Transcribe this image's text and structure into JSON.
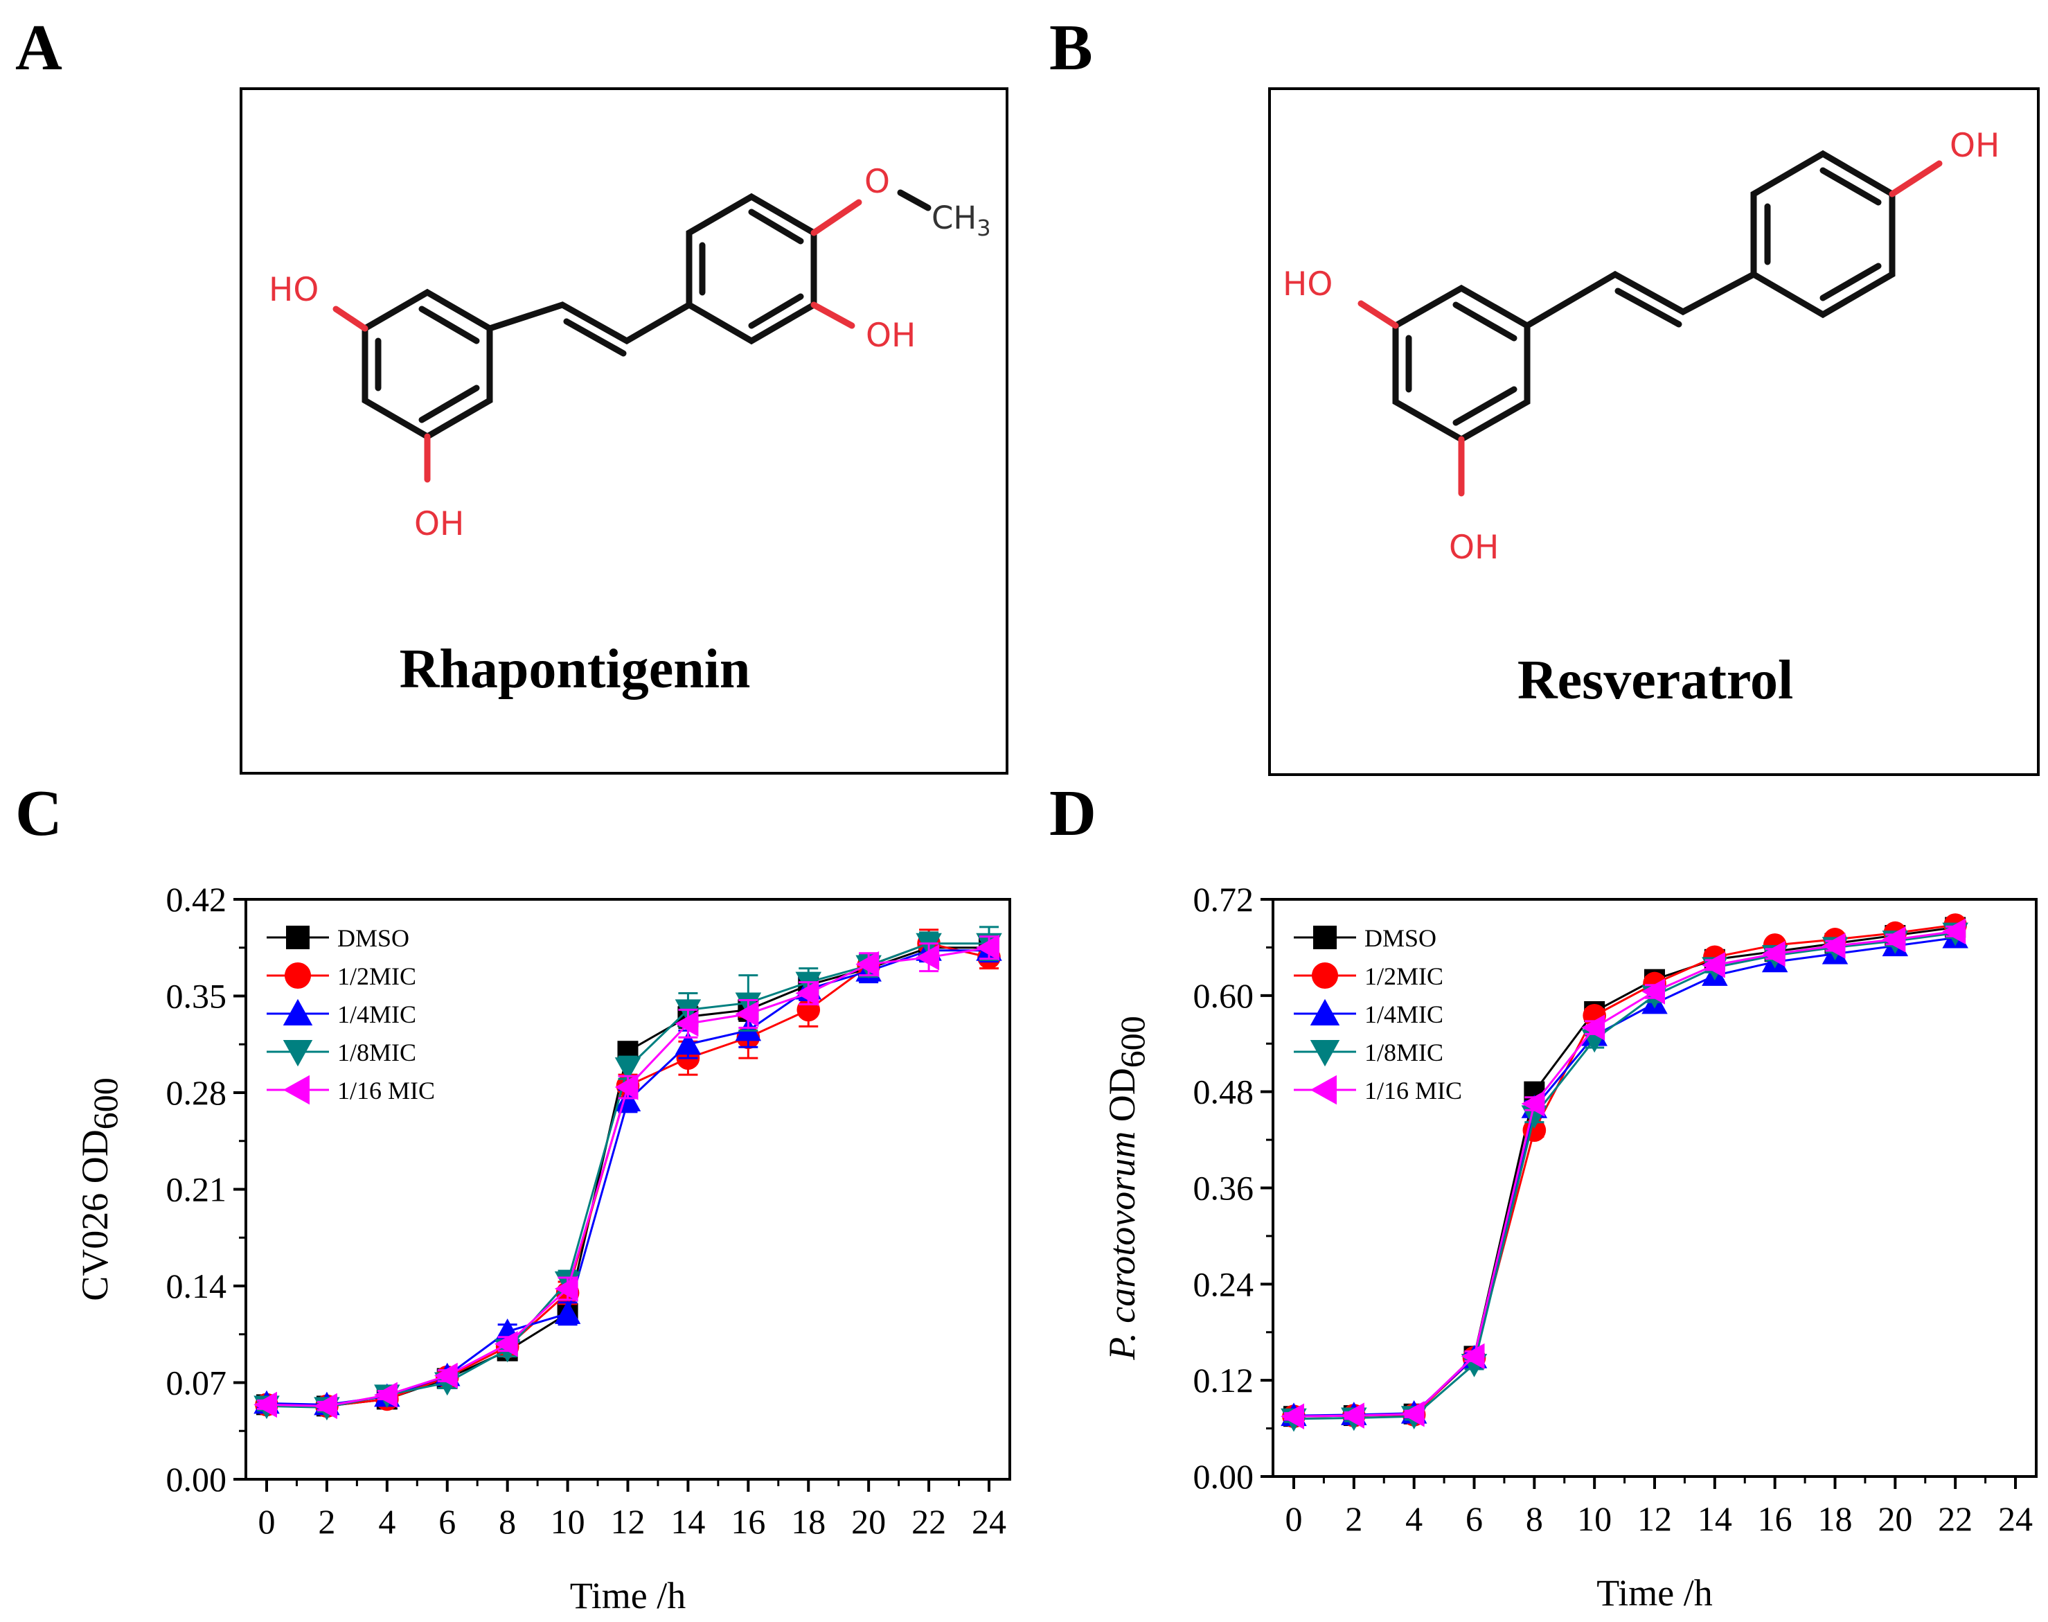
{
  "panels": {
    "A": {
      "label": "A",
      "compound": "Rhapontigenin",
      "atoms": [
        "HO",
        "OH",
        "OH",
        "O",
        "CH",
        "3"
      ]
    },
    "B": {
      "label": "B",
      "compound": "Resveratrol",
      "atoms": [
        "HO",
        "OH",
        "OH"
      ]
    },
    "C": {
      "label": "C"
    },
    "D": {
      "label": "D"
    }
  },
  "colors": {
    "DMSO": "#000000",
    "1/2MIC": "#ff0000",
    "1/4MIC": "#0000ff",
    "1/8MIC": "#008080",
    "1/16 MIC": "#ff00ff"
  },
  "chart_data": [
    {
      "panel": "C",
      "type": "line",
      "title": "",
      "xlabel": "Time /h",
      "ylabel": "CV026 OD",
      "ylabel_sub": "600",
      "xlim": [
        0,
        24
      ],
      "ylim": [
        0,
        0.42
      ],
      "xticks": [
        "0",
        "2",
        "4",
        "6",
        "8",
        "10",
        "12",
        "14",
        "16",
        "18",
        "20",
        "22",
        "24"
      ],
      "yticks": [
        "0.00",
        "0.07",
        "0.14",
        "0.21",
        "0.28",
        "0.35",
        "0.42"
      ],
      "x": [
        0,
        2,
        4,
        6,
        8,
        10,
        12,
        14,
        16,
        18,
        20,
        22,
        24
      ],
      "series": [
        {
          "name": "DMSO",
          "marker": "square",
          "values": [
            0.054,
            0.053,
            0.058,
            0.073,
            0.093,
            0.12,
            0.31,
            0.335,
            0.34,
            0.358,
            0.37,
            0.385,
            0.385
          ],
          "errors": [
            0.003,
            0.003,
            0.003,
            0.004,
            0.005,
            0.006,
            0.006,
            0.008,
            0.008,
            0.006,
            0.008,
            0.006,
            0.008
          ]
        },
        {
          "name": "1/2MIC",
          "marker": "circle",
          "values": [
            0.054,
            0.053,
            0.058,
            0.074,
            0.096,
            0.135,
            0.285,
            0.305,
            0.32,
            0.34,
            0.372,
            0.388,
            0.378
          ],
          "errors": [
            0.003,
            0.003,
            0.003,
            0.004,
            0.005,
            0.008,
            0.008,
            0.012,
            0.015,
            0.012,
            0.008,
            0.01,
            0.008
          ]
        },
        {
          "name": "1/4MIC",
          "marker": "triangle-up",
          "values": [
            0.055,
            0.054,
            0.06,
            0.075,
            0.107,
            0.12,
            0.274,
            0.315,
            0.325,
            0.355,
            0.368,
            0.383,
            0.383
          ],
          "errors": [
            0.003,
            0.003,
            0.003,
            0.004,
            0.005,
            0.008,
            0.008,
            0.01,
            0.012,
            0.008,
            0.008,
            0.008,
            0.008
          ]
        },
        {
          "name": "1/8MIC",
          "marker": "triangle-down",
          "values": [
            0.053,
            0.052,
            0.061,
            0.07,
            0.094,
            0.143,
            0.298,
            0.34,
            0.345,
            0.36,
            0.372,
            0.388,
            0.388
          ],
          "errors": [
            0.003,
            0.003,
            0.003,
            0.004,
            0.005,
            0.008,
            0.008,
            0.012,
            0.02,
            0.01,
            0.008,
            0.008,
            0.012
          ]
        },
        {
          "name": "1/16 MIC",
          "marker": "triangle-left",
          "values": [
            0.054,
            0.053,
            0.061,
            0.075,
            0.098,
            0.138,
            0.284,
            0.33,
            0.337,
            0.352,
            0.373,
            0.378,
            0.385
          ],
          "errors": [
            0.003,
            0.003,
            0.003,
            0.004,
            0.005,
            0.008,
            0.008,
            0.01,
            0.01,
            0.008,
            0.008,
            0.01,
            0.008
          ]
        }
      ],
      "legend": "top-left"
    },
    {
      "panel": "D",
      "type": "line",
      "title": "",
      "xlabel": "Time /h",
      "ylabel": "P. carotovorum OD",
      "ylabel_sub": "600",
      "xlim": [
        0,
        24
      ],
      "ylim": [
        0,
        0.72
      ],
      "xticks": [
        "0",
        "2",
        "4",
        "6",
        "8",
        "10",
        "12",
        "14",
        "16",
        "18",
        "20",
        "22",
        "24"
      ],
      "yticks": [
        "0.00",
        "0.12",
        "0.24",
        "0.36",
        "0.48",
        "0.60",
        "0.72"
      ],
      "x": [
        0,
        2,
        4,
        6,
        8,
        10,
        12,
        14,
        16,
        18,
        20,
        22
      ],
      "series": [
        {
          "name": "DMSO",
          "marker": "square",
          "values": [
            0.075,
            0.076,
            0.078,
            0.15,
            0.48,
            0.58,
            0.62,
            0.645,
            0.655,
            0.665,
            0.675,
            0.685
          ],
          "errors": [
            0.004,
            0.004,
            0.004,
            0.006,
            0.008,
            0.008,
            0.008,
            0.006,
            0.006,
            0.006,
            0.006,
            0.006
          ]
        },
        {
          "name": "1/2MIC",
          "marker": "circle",
          "values": [
            0.075,
            0.076,
            0.077,
            0.148,
            0.432,
            0.575,
            0.615,
            0.648,
            0.663,
            0.67,
            0.678,
            0.688
          ],
          "errors": [
            0.004,
            0.004,
            0.004,
            0.006,
            0.008,
            0.008,
            0.008,
            0.006,
            0.006,
            0.006,
            0.006,
            0.006
          ]
        },
        {
          "name": "1/4MIC",
          "marker": "triangle-up",
          "values": [
            0.076,
            0.077,
            0.079,
            0.148,
            0.46,
            0.55,
            0.59,
            0.625,
            0.642,
            0.652,
            0.662,
            0.672
          ],
          "errors": [
            0.004,
            0.004,
            0.004,
            0.006,
            0.008,
            0.008,
            0.008,
            0.006,
            0.006,
            0.006,
            0.006,
            0.006
          ]
        },
        {
          "name": "1/8MIC",
          "marker": "triangle-down",
          "values": [
            0.072,
            0.073,
            0.075,
            0.14,
            0.45,
            0.545,
            0.6,
            0.635,
            0.65,
            0.66,
            0.668,
            0.678
          ],
          "errors": [
            0.004,
            0.004,
            0.004,
            0.006,
            0.008,
            0.01,
            0.008,
            0.006,
            0.006,
            0.006,
            0.006,
            0.006
          ]
        },
        {
          "name": "1/16 MIC",
          "marker": "triangle-left",
          "values": [
            0.075,
            0.076,
            0.078,
            0.15,
            0.465,
            0.56,
            0.605,
            0.638,
            0.652,
            0.662,
            0.67,
            0.68
          ],
          "errors": [
            0.004,
            0.004,
            0.004,
            0.006,
            0.008,
            0.008,
            0.008,
            0.006,
            0.006,
            0.006,
            0.006,
            0.006
          ]
        }
      ],
      "legend": "top-left"
    }
  ]
}
